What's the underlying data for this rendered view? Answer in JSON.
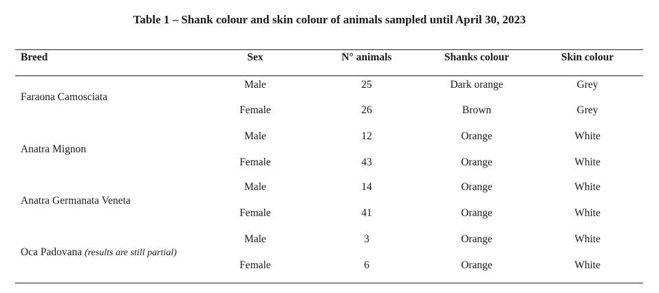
{
  "caption": "Table 1 – Shank colour and skin colour of animals sampled until April 30, 2023",
  "headers": {
    "breed": "Breed",
    "sex": "Sex",
    "animals": "N° animals",
    "shanks": "Shanks colour",
    "skin": "Skin colour"
  },
  "breeds": [
    {
      "name": "Faraona Camosciata",
      "note": "",
      "rows": [
        {
          "sex": "Male",
          "animals": "25",
          "shanks": "Dark orange",
          "skin": "Grey"
        },
        {
          "sex": "Female",
          "animals": "26",
          "shanks": "Brown",
          "skin": "Grey"
        }
      ]
    },
    {
      "name": "Anatra Mignon",
      "note": "",
      "rows": [
        {
          "sex": "Male",
          "animals": "12",
          "shanks": "Orange",
          "skin": "White"
        },
        {
          "sex": "Female",
          "animals": "43",
          "shanks": "Orange",
          "skin": "White"
        }
      ]
    },
    {
      "name": "Anatra Germanata Veneta",
      "note": "",
      "rows": [
        {
          "sex": "Male",
          "animals": "14",
          "shanks": "Orange",
          "skin": "White"
        },
        {
          "sex": "Female",
          "animals": "41",
          "shanks": "Orange",
          "skin": "White"
        }
      ]
    },
    {
      "name": "Oca Padovana",
      "note": "(results are still partial)",
      "rows": [
        {
          "sex": "Male",
          "animals": "3",
          "shanks": "Orange",
          "skin": "White"
        },
        {
          "sex": "Female",
          "animals": "6",
          "shanks": "Orange",
          "skin": "White"
        }
      ]
    }
  ]
}
